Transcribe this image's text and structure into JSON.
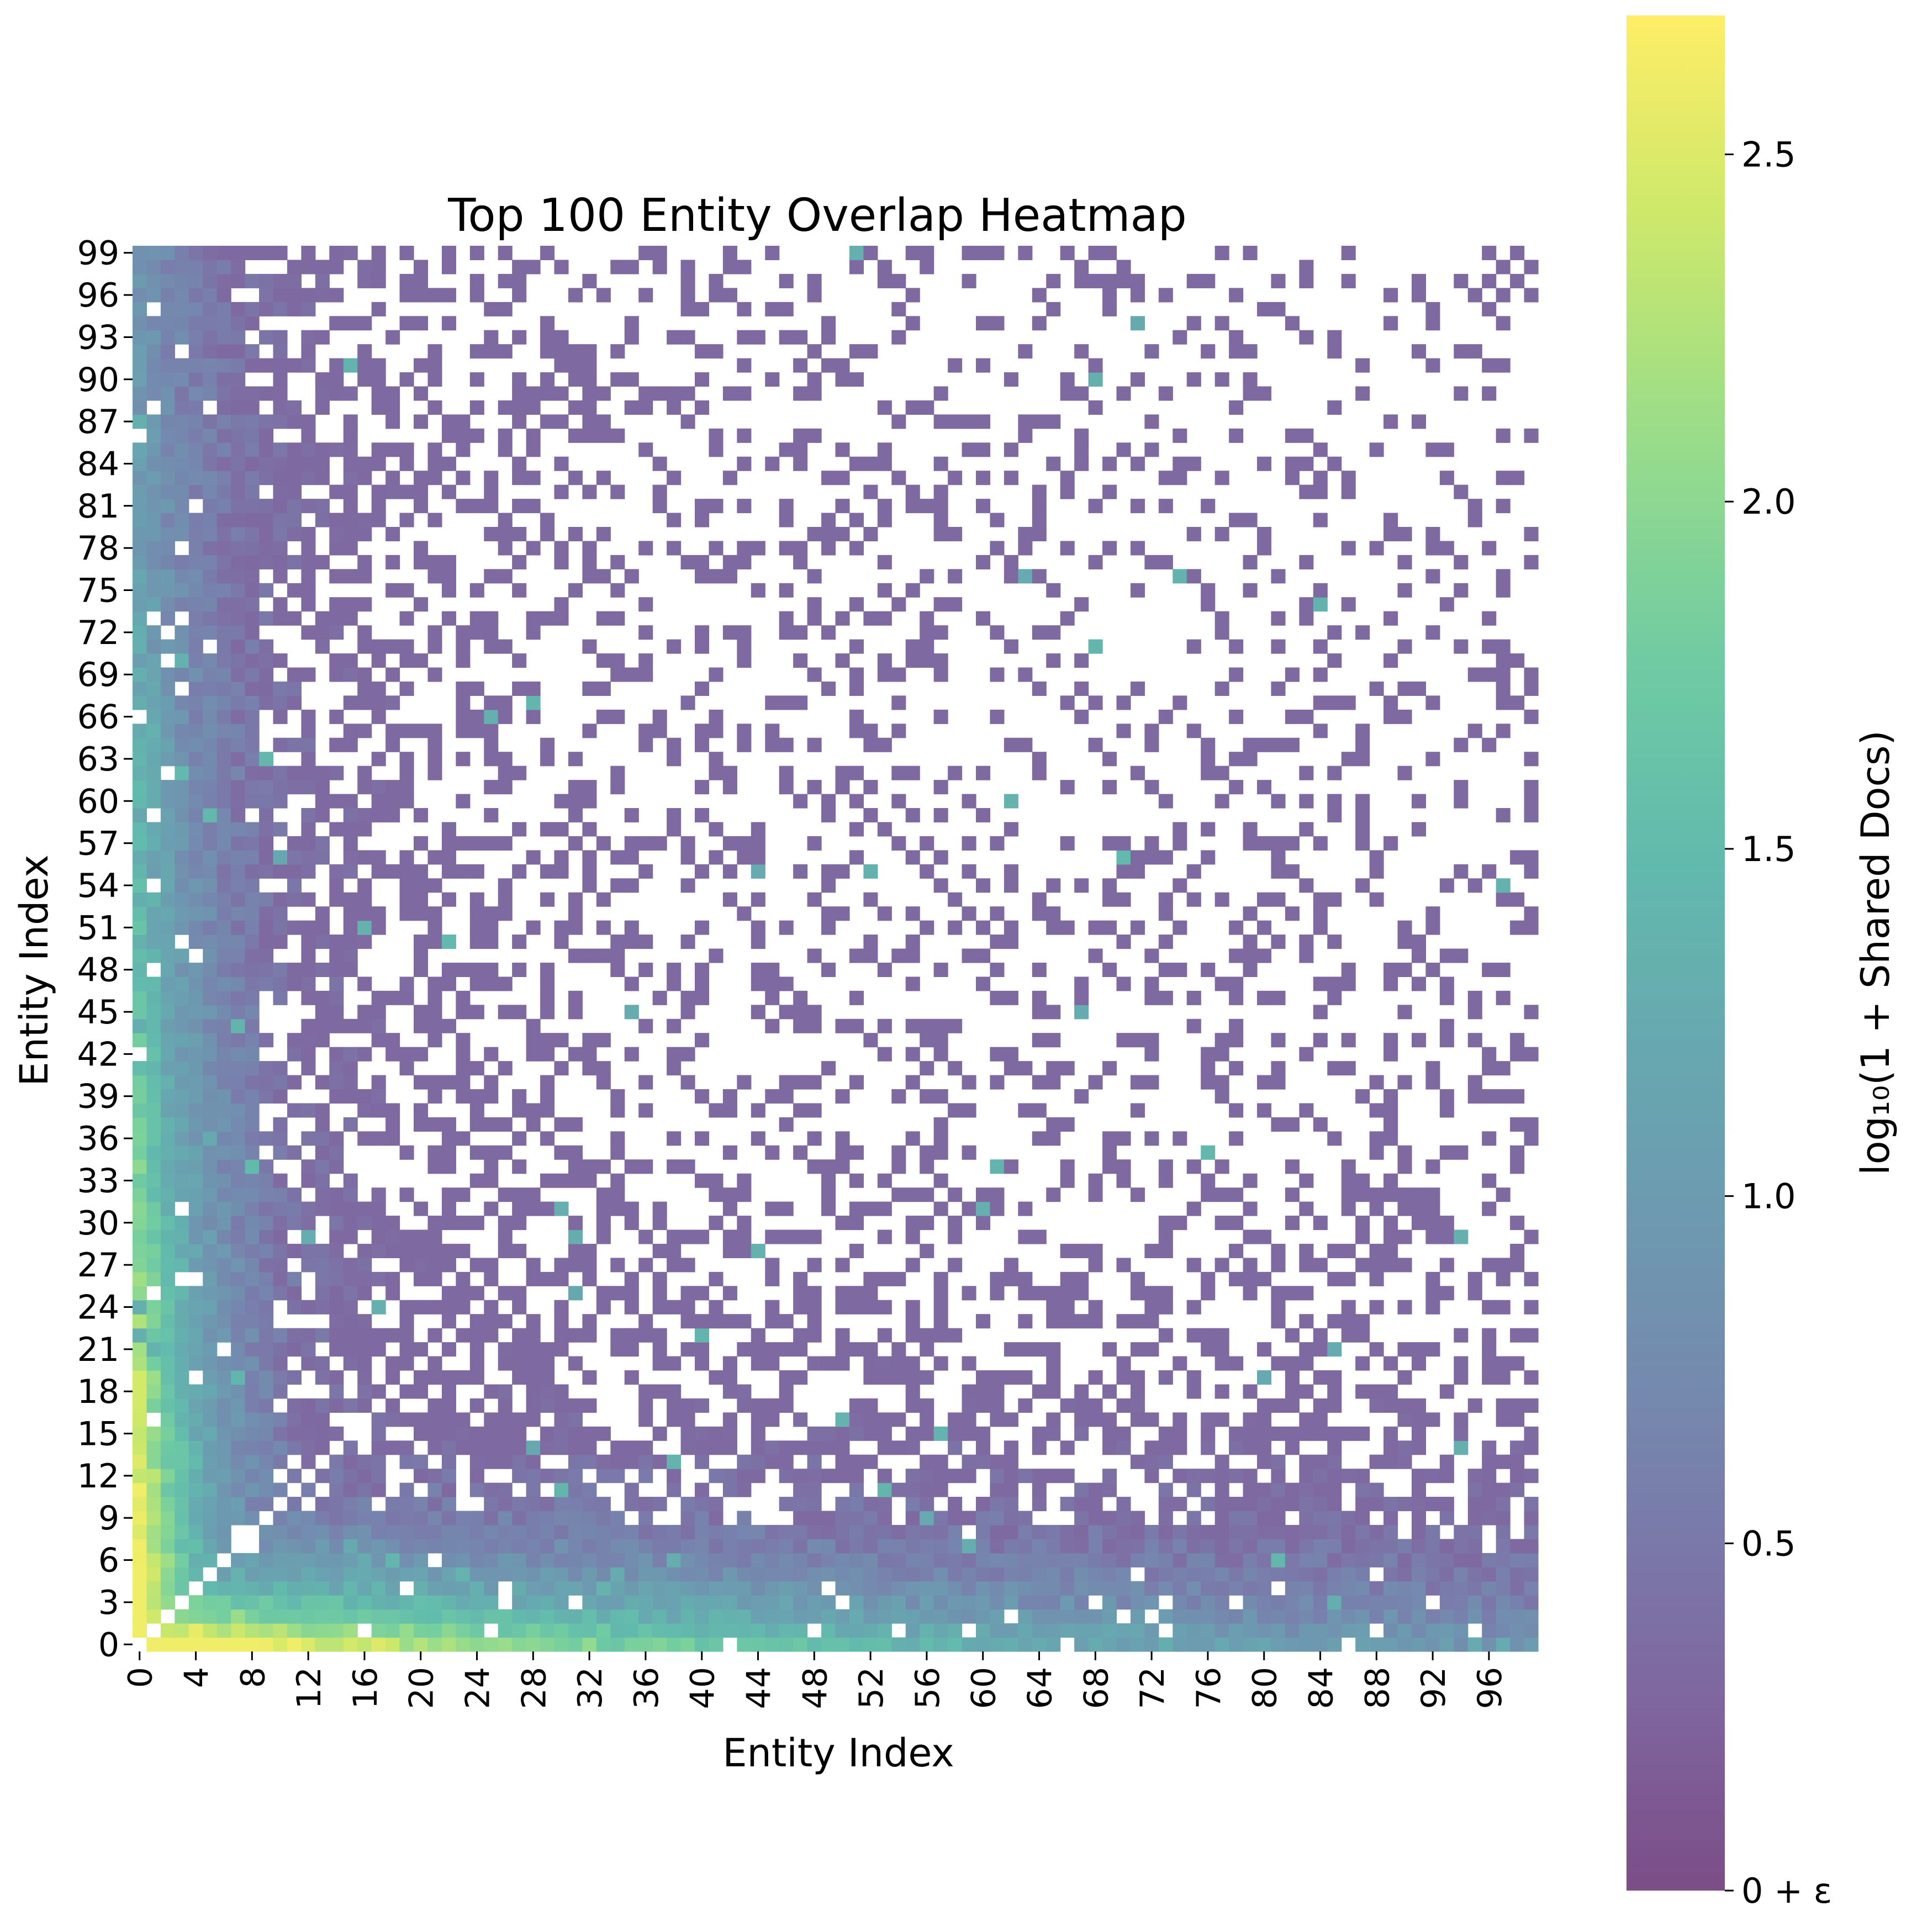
{
  "chart_data": {
    "type": "heatmap",
    "title": "Top 100 Entity Overlap Heatmap",
    "xlabel": "Entity Index",
    "ylabel": "Entity Index",
    "n": 100,
    "x_tick_labels": [
      "0",
      "4",
      "8",
      "12",
      "16",
      "20",
      "24",
      "28",
      "32",
      "36",
      "40",
      "44",
      "48",
      "52",
      "56",
      "60",
      "64",
      "68",
      "72",
      "76",
      "80",
      "84",
      "88",
      "92",
      "96"
    ],
    "y_tick_labels": [
      "0",
      "3",
      "6",
      "9",
      "12",
      "15",
      "18",
      "21",
      "24",
      "27",
      "30",
      "33",
      "36",
      "39",
      "42",
      "45",
      "48",
      "51",
      "54",
      "57",
      "60",
      "63",
      "66",
      "69",
      "72",
      "75",
      "78",
      "81",
      "84",
      "87",
      "90",
      "93",
      "96",
      "99"
    ],
    "colorbar": {
      "label": "log₁₀(1 + Shared Docs)",
      "range": [
        0,
        2.7
      ],
      "tick_labels": [
        "0 + ε",
        "0.5",
        "1.0",
        "1.5",
        "2.0",
        "2.5"
      ],
      "tick_values": [
        0,
        0.5,
        1.0,
        1.5,
        2.0,
        2.5
      ],
      "colormap": "viridis",
      "alpha": 0.7
    },
    "diagonal": "empty",
    "empty_color": "#ffffff",
    "value_model": "approximate: value(i,j) ≈ 2.6 decreasing with entity rank; sparse off-diagonal cells mostly 0.3–1.3 with rare outliers up to 1.5"
  }
}
